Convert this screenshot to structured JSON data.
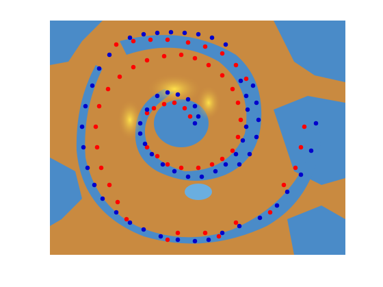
{
  "chart_data": {
    "type": "scatter",
    "xlim": [
      73,
      505
    ],
    "ylim": [
      372,
      30
    ],
    "series": [
      {
        "color": "#ff0000",
        "x": [
          215,
          225,
          240,
          255,
          270,
          278,
          215,
          230,
          245,
          265,
          290,
          310,
          325,
          340,
          348,
          352,
          348,
          340,
          325,
          305,
          285,
          265,
          240,
          215,
          195,
          175,
          158,
          145,
          140,
          142,
          148,
          160,
          172,
          185,
          170,
          195,
          220,
          245,
          275,
          300,
          325,
          345,
          360,
          300,
          320,
          345,
          395,
          415,
          432,
          440,
          445,
          260,
          245
        ],
        "y": [
          165,
          158,
          152,
          150,
          158,
          170,
          215,
          228,
          240,
          245,
          245,
          240,
          232,
          220,
          200,
          175,
          150,
          130,
          110,
          95,
          85,
          80,
          82,
          88,
          98,
          112,
          130,
          155,
          185,
          215,
          245,
          270,
          295,
          320,
          65,
          60,
          58,
          58,
          62,
          68,
          78,
          95,
          115,
          340,
          345,
          325,
          310,
          270,
          245,
          215,
          185,
          340,
          350
        ]
      },
      {
        "color": "#0000cc",
        "x": [
          230,
          245,
          260,
          275,
          285,
          290,
          285,
          215,
          205,
          205,
          212,
          222,
          238,
          255,
          275,
          295,
          315,
          330,
          345,
          355,
          360,
          362,
          360,
          352,
          370,
          375,
          378,
          375,
          365,
          350,
          190,
          210,
          230,
          250,
          270,
          290,
          310,
          330,
          160,
          145,
          135,
          125,
          120,
          122,
          128,
          138,
          150,
          170,
          190,
          210,
          235,
          260,
          285,
          305,
          325,
          350,
          380,
          405,
          420,
          440,
          455,
          462
        ],
        "y": [
          140,
          135,
          138,
          145,
          155,
          170,
          180,
          160,
          180,
          195,
          210,
          225,
          240,
          250,
          258,
          258,
          250,
          240,
          225,
          205,
          185,
          160,
          140,
          118,
          125,
          150,
          175,
          200,
          225,
          240,
          55,
          50,
          48,
          47,
          48,
          50,
          55,
          65,
          80,
          100,
          125,
          155,
          185,
          215,
          245,
          270,
          290,
          310,
          325,
          335,
          345,
          350,
          352,
          350,
          340,
          330,
          318,
          300,
          280,
          255,
          220,
          180
        ]
      }
    ]
  }
}
